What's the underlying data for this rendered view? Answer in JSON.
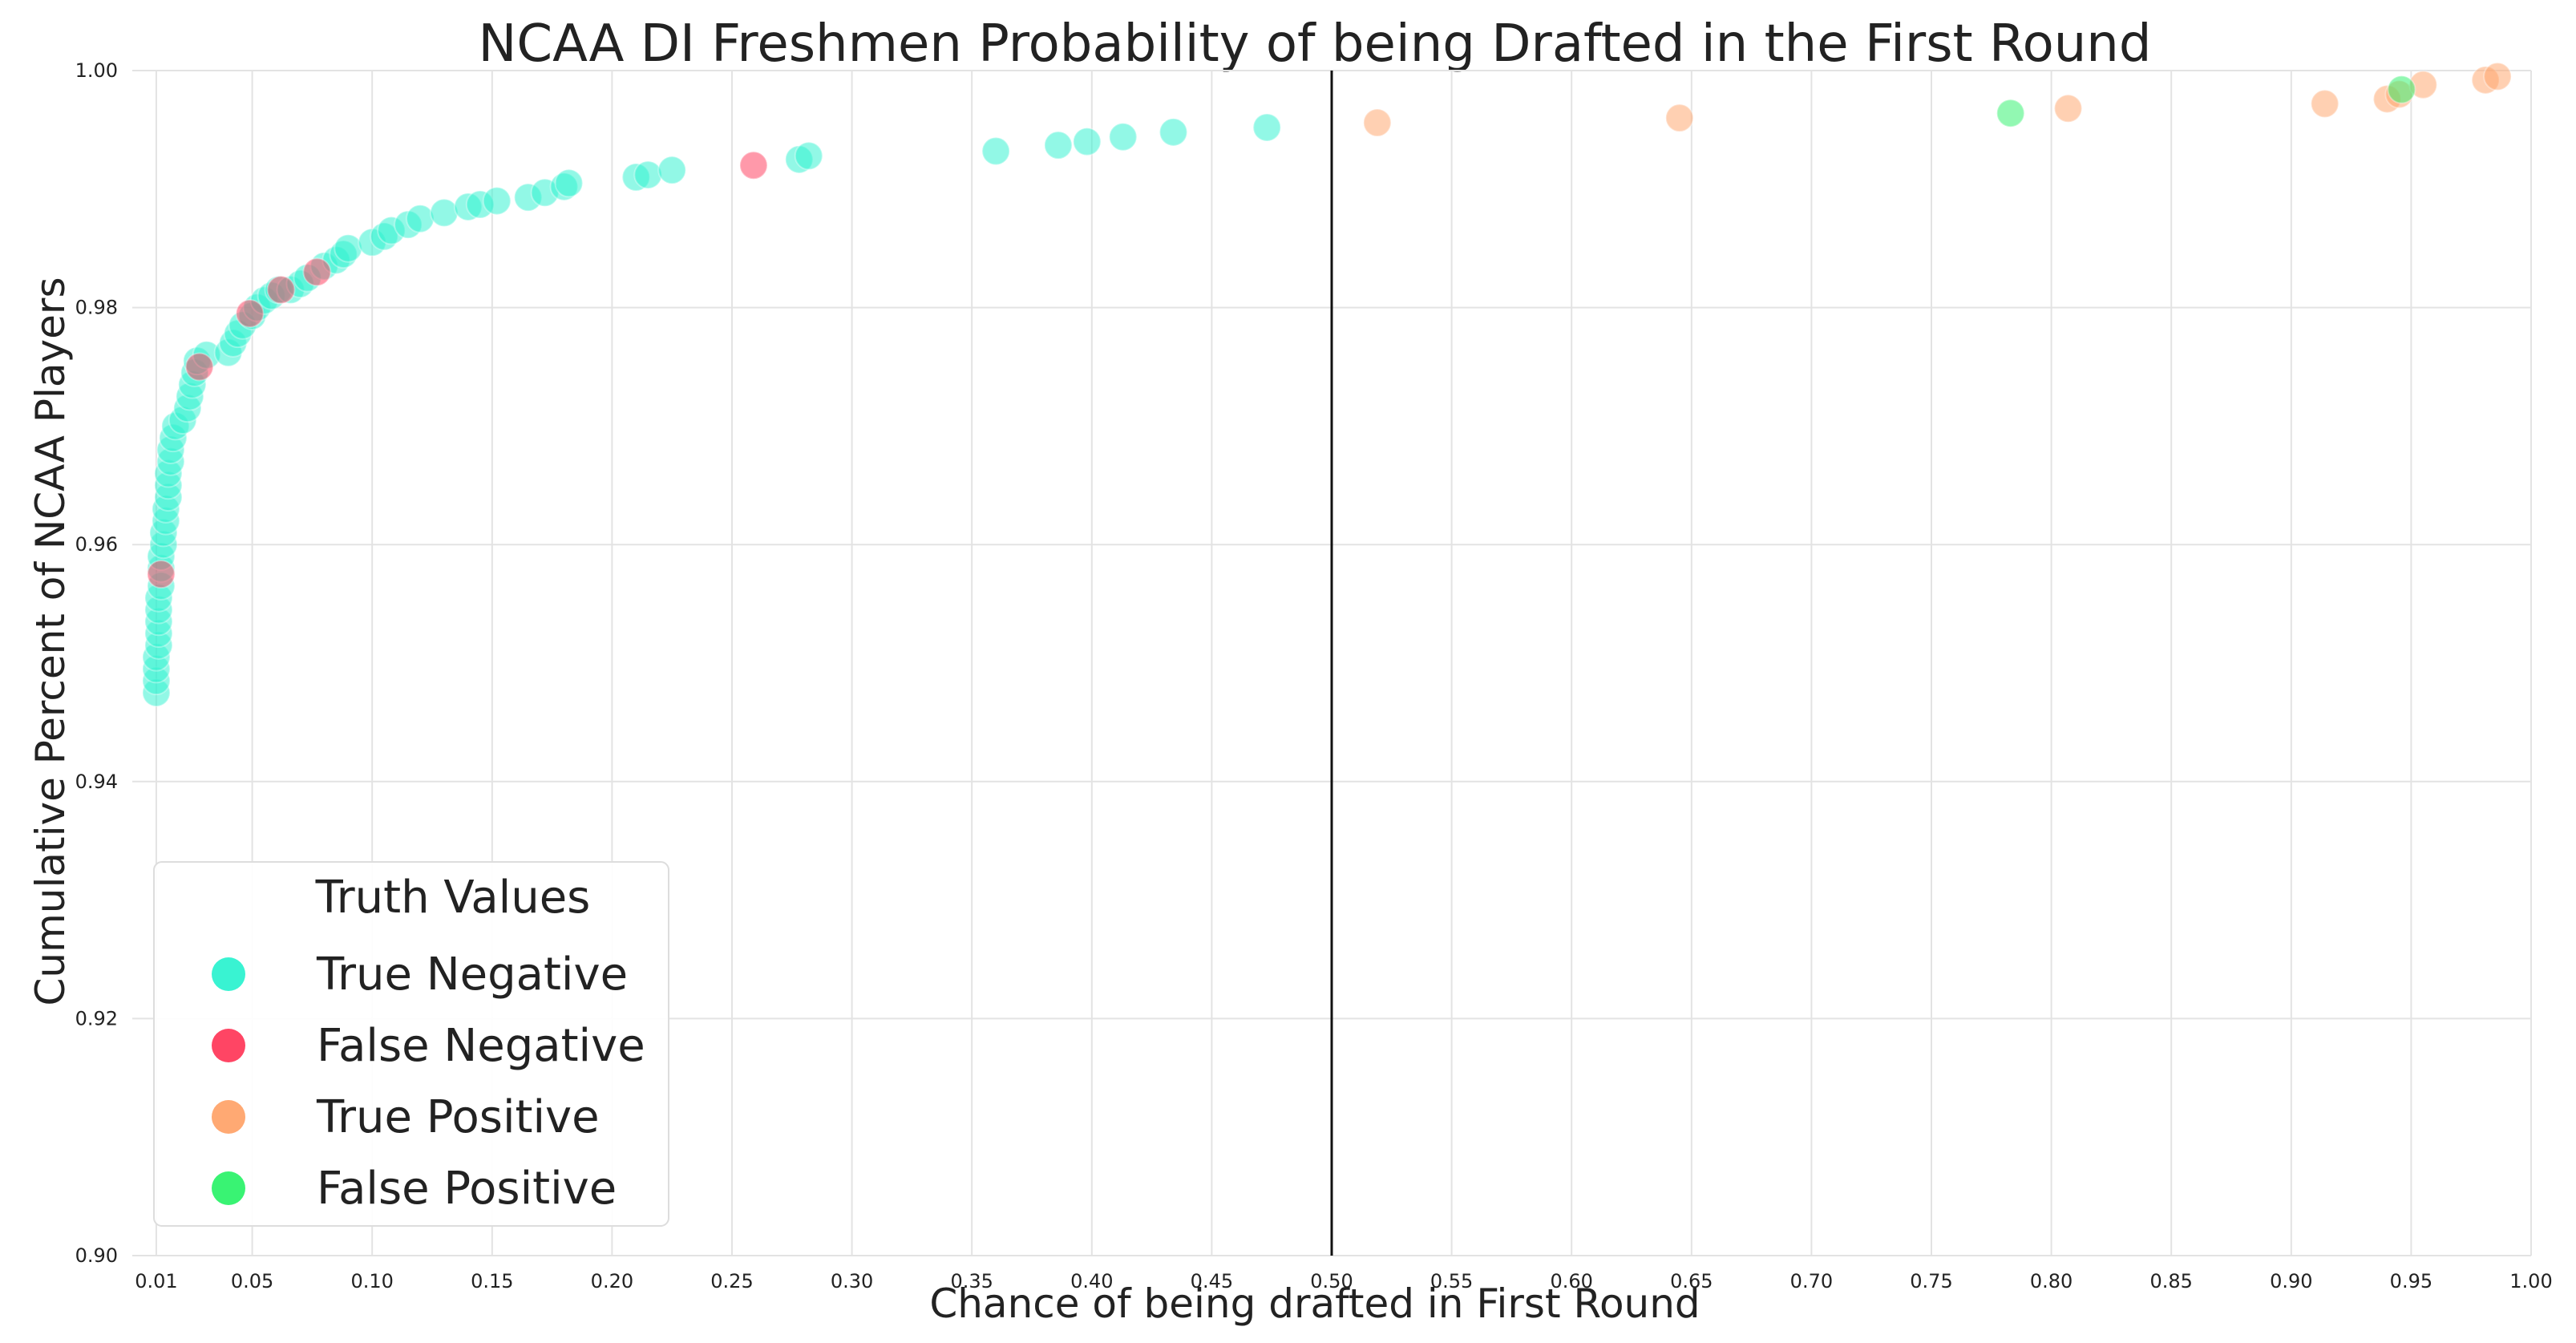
{
  "chart_data": {
    "type": "scatter",
    "title": "NCAA DI Freshmen Probability of being Drafted in the First Round",
    "xlabel": "Chance of being drafted in First Round",
    "ylabel": "Cumulative Percent of NCAA Players",
    "xlim": [
      0.0,
      1.0
    ],
    "ylim": [
      0.9,
      1.0
    ],
    "x_ticks": [
      0.01,
      0.05,
      0.1,
      0.15,
      0.2,
      0.25,
      0.3,
      0.35,
      0.4,
      0.45,
      0.5,
      0.55,
      0.6,
      0.65,
      0.7,
      0.75,
      0.8,
      0.85,
      0.9,
      0.95,
      1.0
    ],
    "x_tick_labels": [
      "0.01",
      "0.05",
      "0.10",
      "0.15",
      "0.20",
      "0.25",
      "0.30",
      "0.35",
      "0.40",
      "0.45",
      "0.50",
      "0.55",
      "0.60",
      "0.65",
      "0.70",
      "0.75",
      "0.80",
      "0.85",
      "0.90",
      "0.95",
      "1.00"
    ],
    "y_ticks": [
      0.9,
      0.92,
      0.94,
      0.96,
      0.98,
      1.0
    ],
    "y_tick_labels": [
      "0.90",
      "0.92",
      "0.94",
      "0.96",
      "0.98",
      "1.00"
    ],
    "grid": true,
    "threshold_x": 0.5,
    "legend": {
      "title": "Truth Values",
      "placement": "lower-left"
    },
    "series": [
      {
        "name": "True Negative",
        "color": "#2EF2D0",
        "points": [
          [
            0.01,
            0.9475
          ],
          [
            0.01,
            0.9485
          ],
          [
            0.01,
            0.9495
          ],
          [
            0.01,
            0.9505
          ],
          [
            0.011,
            0.9515
          ],
          [
            0.011,
            0.9525
          ],
          [
            0.011,
            0.9535
          ],
          [
            0.011,
            0.9545
          ],
          [
            0.011,
            0.9555
          ],
          [
            0.012,
            0.9565
          ],
          [
            0.012,
            0.958
          ],
          [
            0.012,
            0.959
          ],
          [
            0.013,
            0.96
          ],
          [
            0.013,
            0.961
          ],
          [
            0.014,
            0.962
          ],
          [
            0.014,
            0.963
          ],
          [
            0.015,
            0.964
          ],
          [
            0.015,
            0.965
          ],
          [
            0.015,
            0.966
          ],
          [
            0.016,
            0.967
          ],
          [
            0.016,
            0.968
          ],
          [
            0.017,
            0.969
          ],
          [
            0.018,
            0.97
          ],
          [
            0.021,
            0.9705
          ],
          [
            0.023,
            0.9715
          ],
          [
            0.024,
            0.9725
          ],
          [
            0.025,
            0.9735
          ],
          [
            0.026,
            0.9745
          ],
          [
            0.027,
            0.9755
          ],
          [
            0.031,
            0.976
          ],
          [
            0.04,
            0.9762
          ],
          [
            0.042,
            0.977
          ],
          [
            0.044,
            0.9778
          ],
          [
            0.046,
            0.9785
          ],
          [
            0.05,
            0.9793
          ],
          [
            0.052,
            0.98
          ],
          [
            0.055,
            0.9806
          ],
          [
            0.058,
            0.981
          ],
          [
            0.061,
            0.9815
          ],
          [
            0.066,
            0.9815
          ],
          [
            0.07,
            0.982
          ],
          [
            0.073,
            0.9825
          ],
          [
            0.08,
            0.9835
          ],
          [
            0.085,
            0.984
          ],
          [
            0.088,
            0.9845
          ],
          [
            0.09,
            0.985
          ],
          [
            0.1,
            0.9855
          ],
          [
            0.105,
            0.986
          ],
          [
            0.108,
            0.9865
          ],
          [
            0.115,
            0.987
          ],
          [
            0.12,
            0.9875
          ],
          [
            0.13,
            0.988
          ],
          [
            0.14,
            0.9885
          ],
          [
            0.145,
            0.9887
          ],
          [
            0.152,
            0.989
          ],
          [
            0.165,
            0.9893
          ],
          [
            0.172,
            0.9897
          ],
          [
            0.18,
            0.9902
          ],
          [
            0.182,
            0.9905
          ],
          [
            0.21,
            0.991
          ],
          [
            0.215,
            0.9912
          ],
          [
            0.225,
            0.9916
          ],
          [
            0.278,
            0.9925
          ],
          [
            0.282,
            0.9928
          ],
          [
            0.36,
            0.9932
          ],
          [
            0.386,
            0.9937
          ],
          [
            0.398,
            0.994
          ],
          [
            0.413,
            0.9944
          ],
          [
            0.434,
            0.9948
          ],
          [
            0.473,
            0.9952
          ]
        ]
      },
      {
        "name": "False Negative",
        "color": "#FF3B5C",
        "points": [
          [
            0.012,
            0.9575
          ],
          [
            0.028,
            0.975
          ],
          [
            0.049,
            0.9795
          ],
          [
            0.062,
            0.9815
          ],
          [
            0.077,
            0.983
          ],
          [
            0.259,
            0.992
          ]
        ]
      },
      {
        "name": "True Positive",
        "color": "#FFA46B",
        "points": [
          [
            0.519,
            0.9956
          ],
          [
            0.645,
            0.996
          ],
          [
            0.807,
            0.9968
          ],
          [
            0.914,
            0.9972
          ],
          [
            0.94,
            0.9976
          ],
          [
            0.945,
            0.998
          ],
          [
            0.955,
            0.9988
          ],
          [
            0.981,
            0.9992
          ],
          [
            0.986,
            0.9995
          ]
        ]
      },
      {
        "name": "False Positive",
        "color": "#2EF26B",
        "points": [
          [
            0.783,
            0.9964
          ],
          [
            0.946,
            0.9984
          ]
        ]
      }
    ]
  }
}
